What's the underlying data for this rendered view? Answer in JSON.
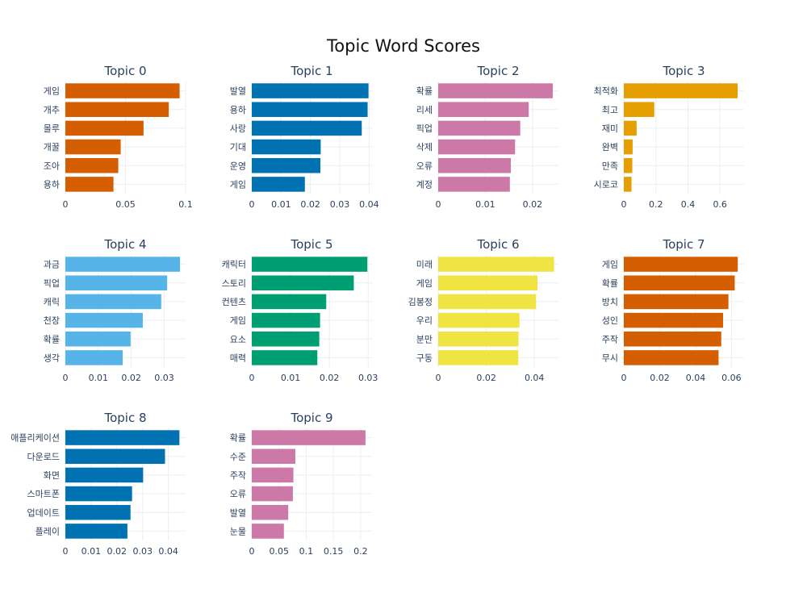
{
  "chart_data": {
    "type": "bar",
    "title": "Topic Word Scores",
    "orientation": "horizontal",
    "panels": [
      {
        "title": "Topic 0",
        "color": "#D55E00",
        "words": [
          "게임",
          "개추",
          "몰루",
          "개꿀",
          "조아",
          "용하"
        ],
        "values": [
          0.095,
          0.086,
          0.065,
          0.046,
          0.044,
          0.04
        ],
        "xlim": [
          0,
          0.1
        ],
        "ticks": [
          0,
          0.05,
          0.1
        ],
        "tick_labels": [
          "0",
          "0.05",
          "0.1"
        ]
      },
      {
        "title": "Topic 1",
        "color": "#0072B2",
        "words": [
          "발열",
          "용하",
          "사랑",
          "기대",
          "운영",
          "게임"
        ],
        "values": [
          0.0398,
          0.0395,
          0.0375,
          0.0235,
          0.0234,
          0.0181
        ],
        "xlim": [
          0,
          0.041
        ],
        "ticks": [
          0,
          0.01,
          0.02,
          0.03,
          0.04
        ],
        "tick_labels": [
          "0",
          "0.01",
          "0.02",
          "0.03",
          "0.04"
        ]
      },
      {
        "title": "Topic 2",
        "color": "#CC79A7",
        "words": [
          "확률",
          "리세",
          "픽업",
          "삭제",
          "오류",
          "계정"
        ],
        "values": [
          0.0243,
          0.0192,
          0.0174,
          0.0163,
          0.0154,
          0.0152
        ],
        "xlim": [
          0,
          0.0255
        ],
        "ticks": [
          0,
          0.01,
          0.02
        ],
        "tick_labels": [
          "0",
          "0.01",
          "0.02"
        ]
      },
      {
        "title": "Topic 3",
        "color": "#E69F00",
        "words": [
          "최적화",
          "최고",
          "재미",
          "완벽",
          "만족",
          "시로코"
        ],
        "values": [
          0.71,
          0.19,
          0.08,
          0.055,
          0.053,
          0.048
        ],
        "xlim": [
          0,
          0.75
        ],
        "ticks": [
          0,
          0.2,
          0.4,
          0.6
        ],
        "tick_labels": [
          "0",
          "0.2",
          "0.4",
          "0.6"
        ]
      },
      {
        "title": "Topic 4",
        "color": "#56B4E9",
        "words": [
          "과금",
          "픽업",
          "캐릭",
          "천장",
          "확률",
          "생각"
        ],
        "values": [
          0.0348,
          0.0309,
          0.0291,
          0.0235,
          0.0198,
          0.0174
        ],
        "xlim": [
          0,
          0.0365
        ],
        "ticks": [
          0,
          0.01,
          0.02,
          0.03
        ],
        "tick_labels": [
          "0",
          "0.01",
          "0.02",
          "0.03"
        ]
      },
      {
        "title": "Topic 5",
        "color": "#009E73",
        "words": [
          "캐릭터",
          "스토리",
          "컨텐츠",
          "게임",
          "요소",
          "매력"
        ],
        "values": [
          0.0298,
          0.0263,
          0.0192,
          0.0176,
          0.0174,
          0.0169
        ],
        "xlim": [
          0,
          0.031
        ],
        "ticks": [
          0,
          0.01,
          0.02,
          0.03
        ],
        "tick_labels": [
          "0",
          "0.01",
          "0.02",
          "0.03"
        ]
      },
      {
        "title": "Topic 6",
        "color": "#F0E442",
        "words": [
          "미래",
          "게임",
          "김봉정",
          "우리",
          "분만",
          "구동"
        ],
        "values": [
          0.0482,
          0.0413,
          0.0407,
          0.0338,
          0.0334,
          0.0333
        ],
        "xlim": [
          0,
          0.05
        ],
        "ticks": [
          0,
          0.02,
          0.04
        ],
        "tick_labels": [
          "0",
          "0.02",
          "0.04"
        ]
      },
      {
        "title": "Topic 7",
        "color": "#D55E00",
        "words": [
          "게임",
          "확률",
          "방치",
          "성인",
          "주작",
          "무시"
        ],
        "values": [
          0.0635,
          0.0618,
          0.0583,
          0.0553,
          0.0543,
          0.0528
        ],
        "xlim": [
          0,
          0.067
        ],
        "ticks": [
          0,
          0.02,
          0.04,
          0.06
        ],
        "tick_labels": [
          "0",
          "0.02",
          "0.04",
          "0.06"
        ]
      },
      {
        "title": "Topic 8",
        "color": "#0072B2",
        "words": [
          "애플리케이션",
          "다운로드",
          "화면",
          "스마트폰",
          "업데이트",
          "플레이"
        ],
        "values": [
          0.0443,
          0.0387,
          0.0302,
          0.0259,
          0.0253,
          0.0241
        ],
        "xlim": [
          0,
          0.0467
        ],
        "ticks": [
          0,
          0.01,
          0.02,
          0.03,
          0.04
        ],
        "tick_labels": [
          "0",
          "0.01",
          "0.02",
          "0.03",
          "0.04"
        ]
      },
      {
        "title": "Topic 9",
        "color": "#CC79A7",
        "words": [
          "확률",
          "수준",
          "주작",
          "오류",
          "발열",
          "눈물"
        ],
        "values": [
          0.209,
          0.08,
          0.0765,
          0.0755,
          0.067,
          0.059
        ],
        "xlim": [
          0,
          0.221
        ],
        "ticks": [
          0,
          0.05,
          0.1,
          0.15,
          0.2
        ],
        "tick_labels": [
          "0",
          "0.05",
          "0.1",
          "0.15",
          "0.2"
        ]
      }
    ]
  }
}
